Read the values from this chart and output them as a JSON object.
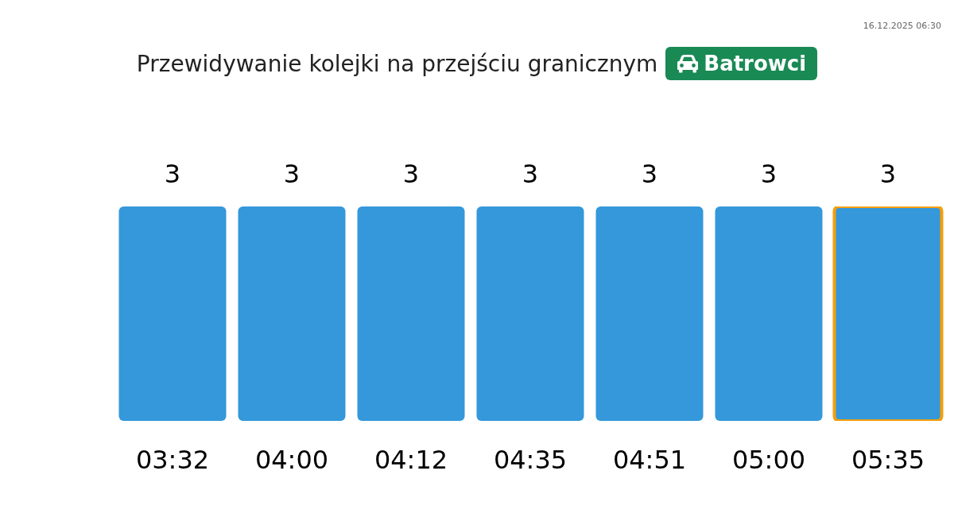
{
  "chart_data": {
    "type": "bar",
    "title": "Przewidywanie kolejki na przejściu granicznym",
    "subtitle": "Batrowci",
    "annotations": [
      "16.12.2025 06:30"
    ],
    "categories": [
      "03:32",
      "04:00",
      "04:12",
      "04:35",
      "04:51",
      "05:00",
      "05:35"
    ],
    "values": [
      3,
      3,
      3,
      3,
      3,
      3,
      3
    ],
    "color": "#3498db",
    "data_labels": true,
    "tick_labels": "x"
  }
}
